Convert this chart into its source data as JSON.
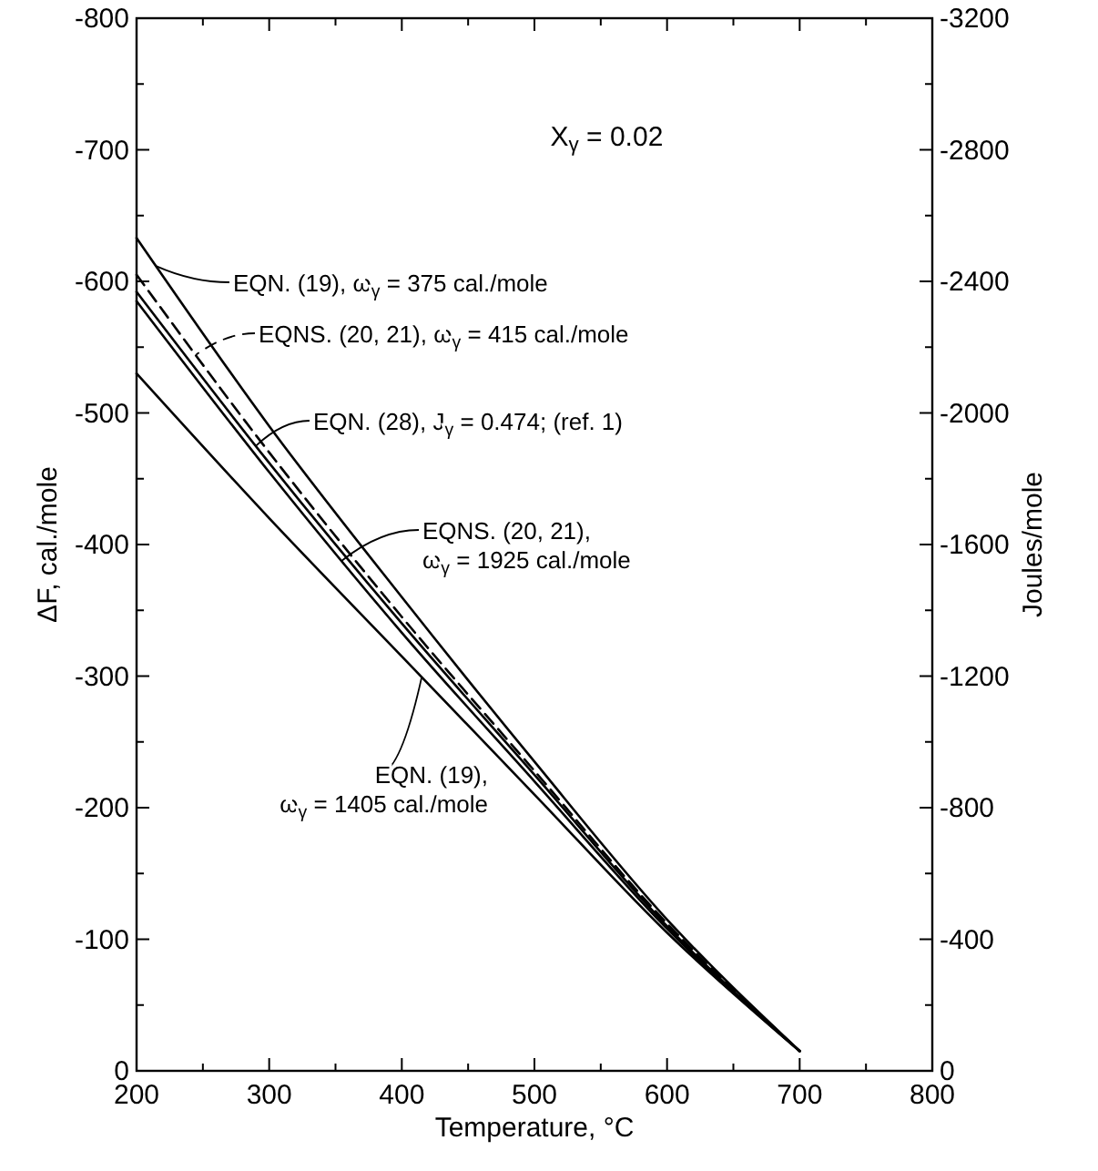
{
  "chart_data": {
    "type": "line",
    "xlabel": "Temperature, °C",
    "ylabel": "ΔF, cal./mole",
    "y2label": "Joules/mole",
    "annotations": [
      "X$_{γ}$ = 0.02"
    ],
    "x": [
      200,
      300,
      400,
      500,
      600,
      700
    ],
    "series": [
      {
        "name": "EQN. (19), ω$_{γ}$ = 375 cal./mole",
        "color": "#000000",
        "line_style": "solid",
        "values": [
          -633,
          -490,
          -360,
          -235,
          -115,
          -15
        ]
      },
      {
        "name": "EQNS. (20, 21), ω$_{γ}$ = 415 cal./mole",
        "color": "#000000",
        "line_style": "dashed",
        "values": [
          -605,
          -470,
          -345,
          -228,
          -112,
          -15
        ]
      },
      {
        "name": "EQN. (28), J$_{γ}$ = 0.474; (ref. 1)",
        "color": "#000000",
        "line_style": "solid",
        "values": [
          -592,
          -462,
          -340,
          -225,
          -110,
          -15
        ]
      },
      {
        "name": "EQNS. (20, 21),\nω$_{γ}$ = 1925 cal./mole",
        "color": "#000000",
        "line_style": "solid",
        "values": [
          -585,
          -455,
          -333,
          -220,
          -108,
          -15
        ]
      },
      {
        "name": "EQN. (19),\nω$_{γ}$ = 1405 cal./mole",
        "color": "#000000",
        "line_style": "solid",
        "values": [
          -530,
          -420,
          -315,
          -210,
          -105,
          -15
        ]
      }
    ],
    "xlim": [
      200,
      800
    ],
    "xticks": [
      200,
      {
        "value": 250,
        "label": null
      },
      300,
      {
        "value": 350,
        "label": null
      },
      400,
      {
        "value": 450,
        "label": null
      },
      500,
      {
        "value": 550,
        "label": null
      },
      600,
      {
        "value": 650,
        "label": null
      },
      700,
      {
        "value": 750,
        "label": null
      },
      800
    ],
    "ylim": [
      0,
      -800
    ],
    "yticks": [
      0,
      {
        "value": -50,
        "label": null
      },
      -100,
      {
        "value": -150,
        "label": null
      },
      -200,
      {
        "value": -250,
        "label": null
      },
      -300,
      {
        "value": -350,
        "label": null
      },
      -400,
      {
        "value": -450,
        "label": null
      },
      -500,
      {
        "value": -550,
        "label": null
      },
      -600,
      {
        "value": -650,
        "label": null
      },
      -700,
      {
        "value": -750,
        "label": null
      },
      -800
    ],
    "y2lim": [
      0,
      -3200
    ],
    "y2ticks": [
      0,
      {
        "value": -200,
        "label": null
      },
      -400,
      {
        "value": -600,
        "label": null
      },
      -800,
      {
        "value": -1000,
        "label": null
      },
      -1200,
      {
        "value": -1400,
        "label": null
      },
      -1600,
      {
        "value": -1800,
        "label": null
      },
      -2000,
      {
        "value": -2200,
        "label": null
      },
      -2400,
      {
        "value": -2600,
        "label": null
      },
      -2800,
      {
        "value": -3000,
        "label": null
      },
      -3200
    ],
    "grid": false,
    "legend": "top left"
  }
}
